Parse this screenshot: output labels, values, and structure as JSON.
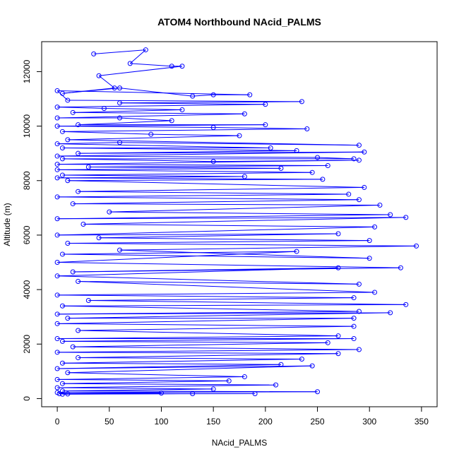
{
  "chart_data": {
    "type": "line",
    "title": "ATOM4 Northbound NAcid_PALMS",
    "xlabel": "NAcid_PALMS",
    "ylabel": "Altitude (m)",
    "xlim": [
      -15,
      365
    ],
    "ylim": [
      -300,
      13100
    ],
    "xticks": [
      0,
      50,
      100,
      150,
      200,
      250,
      300,
      350
    ],
    "yticks": [
      0,
      2000,
      4000,
      6000,
      8000,
      10000,
      12000
    ],
    "xtick_labels": [
      "0",
      "50",
      "100",
      "150",
      "200",
      "250",
      "300",
      "350"
    ],
    "ytick_labels": [
      "0",
      "2000",
      "4000",
      "6000",
      "8000",
      "10000",
      "12000"
    ],
    "grid": false,
    "legend": "none",
    "marker": "open-circle",
    "series_color": "#0000ff",
    "series": [
      {
        "values": [
          [
            35,
            12650
          ],
          [
            85,
            12800
          ],
          [
            70,
            12300
          ],
          [
            110,
            12200
          ],
          [
            120,
            12200
          ],
          [
            40,
            11850
          ],
          [
            55,
            11400
          ],
          [
            5,
            11200
          ],
          [
            60,
            11400
          ],
          [
            130,
            11100
          ],
          [
            150,
            11150
          ],
          [
            185,
            11150
          ],
          [
            0,
            11300
          ],
          [
            10,
            10950
          ],
          [
            235,
            10900
          ],
          [
            60,
            10850
          ],
          [
            200,
            10800
          ],
          [
            0,
            10700
          ],
          [
            45,
            10650
          ],
          [
            120,
            10600
          ],
          [
            15,
            10500
          ],
          [
            180,
            10450
          ],
          [
            0,
            10300
          ],
          [
            60,
            10300
          ],
          [
            110,
            10200
          ],
          [
            20,
            10050
          ],
          [
            200,
            10050
          ],
          [
            0,
            10000
          ],
          [
            150,
            9950
          ],
          [
            240,
            9900
          ],
          [
            5,
            9800
          ],
          [
            90,
            9700
          ],
          [
            175,
            9650
          ],
          [
            10,
            9500
          ],
          [
            290,
            9300
          ],
          [
            60,
            9400
          ],
          [
            0,
            9350
          ],
          [
            205,
            9200
          ],
          [
            5,
            9200
          ],
          [
            230,
            9100
          ],
          [
            20,
            9000
          ],
          [
            295,
            9050
          ],
          [
            0,
            8900
          ],
          [
            250,
            8850
          ],
          [
            285,
            8800
          ],
          [
            5,
            8800
          ],
          [
            150,
            8700
          ],
          [
            290,
            8750
          ],
          [
            0,
            8600
          ],
          [
            260,
            8550
          ],
          [
            30,
            8500
          ],
          [
            215,
            8450
          ],
          [
            0,
            8400
          ],
          [
            245,
            8300
          ],
          [
            5,
            8200
          ],
          [
            180,
            8150
          ],
          [
            0,
            8100
          ],
          [
            255,
            8050
          ],
          [
            10,
            8000
          ],
          [
            295,
            7750
          ],
          [
            20,
            7600
          ],
          [
            280,
            7500
          ],
          [
            0,
            7400
          ],
          [
            290,
            7300
          ],
          [
            15,
            7150
          ],
          [
            310,
            7100
          ],
          [
            50,
            6850
          ],
          [
            320,
            6750
          ],
          [
            0,
            6600
          ],
          [
            335,
            6650
          ],
          [
            25,
            6400
          ],
          [
            305,
            6300
          ],
          [
            0,
            6000
          ],
          [
            270,
            6050
          ],
          [
            40,
            5900
          ],
          [
            300,
            5800
          ],
          [
            10,
            5700
          ],
          [
            345,
            5600
          ],
          [
            60,
            5450
          ],
          [
            300,
            5150
          ],
          [
            5,
            5300
          ],
          [
            230,
            5400
          ],
          [
            0,
            5000
          ],
          [
            330,
            4800
          ],
          [
            15,
            4650
          ],
          [
            270,
            4800
          ],
          [
            0,
            4500
          ],
          [
            290,
            4200
          ],
          [
            20,
            4300
          ],
          [
            305,
            3900
          ],
          [
            0,
            3800
          ],
          [
            285,
            3700
          ],
          [
            30,
            3600
          ],
          [
            335,
            3450
          ],
          [
            5,
            3400
          ],
          [
            290,
            3200
          ],
          [
            0,
            3100
          ],
          [
            320,
            3150
          ],
          [
            10,
            2950
          ],
          [
            285,
            2950
          ],
          [
            0,
            2750
          ],
          [
            285,
            2650
          ],
          [
            20,
            2500
          ],
          [
            270,
            2300
          ],
          [
            0,
            2200
          ],
          [
            285,
            2200
          ],
          [
            5,
            2100
          ],
          [
            260,
            2050
          ],
          [
            15,
            1900
          ],
          [
            290,
            1800
          ],
          [
            0,
            1700
          ],
          [
            270,
            1650
          ],
          [
            20,
            1500
          ],
          [
            235,
            1450
          ],
          [
            5,
            1300
          ],
          [
            215,
            1250
          ],
          [
            0,
            1100
          ],
          [
            245,
            1200
          ],
          [
            10,
            950
          ],
          [
            180,
            800
          ],
          [
            0,
            700
          ],
          [
            165,
            650
          ],
          [
            5,
            550
          ],
          [
            210,
            500
          ],
          [
            0,
            400
          ],
          [
            150,
            350
          ],
          [
            5,
            280
          ],
          [
            250,
            250
          ],
          [
            0,
            220
          ],
          [
            100,
            200
          ],
          [
            2,
            180
          ],
          [
            190,
            180
          ],
          [
            10,
            170
          ],
          [
            130,
            180
          ],
          [
            5,
            160
          ]
        ]
      }
    ]
  }
}
